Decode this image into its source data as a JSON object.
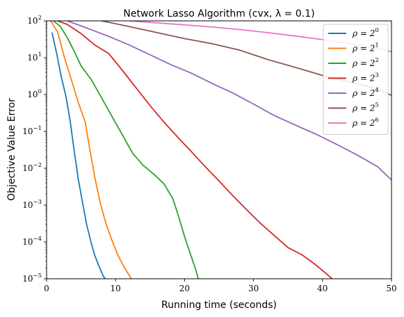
{
  "chart_data": {
    "type": "line",
    "title": "Network Lasso Algorithm (cvx, λ = 0.1)",
    "xlabel": "Running time (seconds)",
    "ylabel": "Objective Value Error",
    "xlim": [
      0,
      50
    ],
    "ylim": [
      1e-05,
      100
    ],
    "yscale": "log",
    "xticks": [
      0,
      10,
      20,
      30,
      40,
      50
    ],
    "xtick_labels": [
      "0",
      "10",
      "20",
      "30",
      "40",
      "50"
    ],
    "yticks": [
      1e-05,
      0.0001,
      0.001,
      0.01,
      0.1,
      1,
      10,
      100
    ],
    "ytick_labels": [
      {
        "base": "10",
        "exp": "−5"
      },
      {
        "base": "10",
        "exp": "−4"
      },
      {
        "base": "10",
        "exp": "−3"
      },
      {
        "base": "10",
        "exp": "−2"
      },
      {
        "base": "10",
        "exp": "−1"
      },
      {
        "base": "10",
        "exp": "0"
      },
      {
        "base": "10",
        "exp": "1"
      },
      {
        "base": "10",
        "exp": "2"
      }
    ],
    "grid": false,
    "legend_position": "top-right",
    "series": [
      {
        "name": "ρ = 2^0",
        "label_base": "ρ = 2",
        "label_exp": "0",
        "color": "#1f77b4",
        "x": [
          0.8,
          1.5,
          2.1,
          2.8,
          3.4,
          4.0,
          4.6,
          5.2,
          5.8,
          6.4,
          7.0,
          7.6,
          8.2,
          8.5
        ],
        "y": [
          47,
          12,
          3.2,
          0.9,
          0.2,
          0.03,
          0.005,
          0.0012,
          0.0003,
          0.000105,
          4.2e-05,
          2.2e-05,
          1.2e-05,
          1e-05
        ]
      },
      {
        "name": "ρ = 2^1",
        "label_base": "ρ = 2",
        "label_exp": "1",
        "color": "#ff7f0e",
        "x": [
          0.6,
          1.6,
          2.6,
          3.6,
          4.6,
          5.6,
          6.3,
          7.0,
          7.8,
          8.6,
          9.4,
          10.2,
          11.0,
          11.8,
          12.3
        ],
        "y": [
          100,
          50,
          10,
          2.5,
          0.6,
          0.18,
          0.03,
          0.0055,
          0.0011,
          0.00032,
          0.00012,
          5e-05,
          2.5e-05,
          1.4e-05,
          1e-05
        ]
      },
      {
        "name": "ρ = 2^2",
        "label_base": "ρ = 2",
        "label_exp": "2",
        "color": "#2ca02c",
        "x": [
          1.0,
          2.0,
          3.0,
          4.0,
          5.0,
          6.5,
          8.0,
          9.5,
          11.0,
          12.5,
          14.0,
          15.5,
          17.0,
          18.3,
          19.2,
          20.0,
          20.8,
          21.6,
          22.0
        ],
        "y": [
          100,
          70,
          35,
          15,
          6,
          2.5,
          0.8,
          0.25,
          0.08,
          0.025,
          0.012,
          0.007,
          0.0038,
          0.0015,
          0.00045,
          0.00014,
          5e-05,
          1.8e-05,
          1e-05
        ]
      },
      {
        "name": "ρ = 2^3",
        "label_base": "ρ = 2",
        "label_exp": "3",
        "color": "#d62728",
        "x": [
          1.6,
          3.0,
          5.0,
          7.0,
          9.0,
          11.0,
          13.0,
          15.0,
          17.0,
          19.0,
          21.0,
          23.0,
          25.0,
          27.0,
          29.0,
          31.0,
          33.0,
          35.0,
          37.0,
          39.0,
          40.5,
          41.4
        ],
        "y": [
          100,
          80,
          45,
          22,
          13,
          4.5,
          1.5,
          0.5,
          0.18,
          0.07,
          0.028,
          0.011,
          0.0045,
          0.0018,
          0.00075,
          0.00032,
          0.00015,
          7e-05,
          4.5e-05,
          2.4e-05,
          1.4e-05,
          1e-05
        ]
      },
      {
        "name": "ρ = 2^4",
        "label_base": "ρ = 2",
        "label_exp": "4",
        "color": "#9467bd",
        "x": [
          3.0,
          6.0,
          9.0,
          12.0,
          15.0,
          18.0,
          21.0,
          24.0,
          27.0,
          30.0,
          33.0,
          36.0,
          39.0,
          42.0,
          45.0,
          48.0,
          50.0
        ],
        "y": [
          100,
          62,
          38,
          22,
          12,
          6.5,
          3.8,
          2.0,
          1.1,
          0.55,
          0.27,
          0.15,
          0.085,
          0.045,
          0.023,
          0.011,
          0.0048
        ]
      },
      {
        "name": "ρ = 2^5",
        "label_base": "ρ = 2",
        "label_exp": "5",
        "color": "#8c564b",
        "x": [
          8.0,
          12.0,
          16.0,
          20.0,
          24.0,
          28.0,
          32.0,
          36.0,
          40.0,
          44.0,
          48.0,
          50.0
        ],
        "y": [
          100,
          70,
          48,
          33,
          24,
          16,
          9,
          5.5,
          3.3,
          2.2,
          1.4,
          0.95
        ]
      },
      {
        "name": "ρ = 2^6",
        "label_base": "ρ = 2",
        "label_exp": "6",
        "color": "#e377c2",
        "x": [
          12.0,
          16.0,
          20.0,
          24.0,
          28.0,
          32.0,
          36.0,
          40.0,
          44.0,
          48.0,
          50.0
        ],
        "y": [
          100,
          88,
          78,
          68,
          58,
          48,
          39,
          31,
          24,
          17.5,
          14.5
        ]
      }
    ]
  }
}
